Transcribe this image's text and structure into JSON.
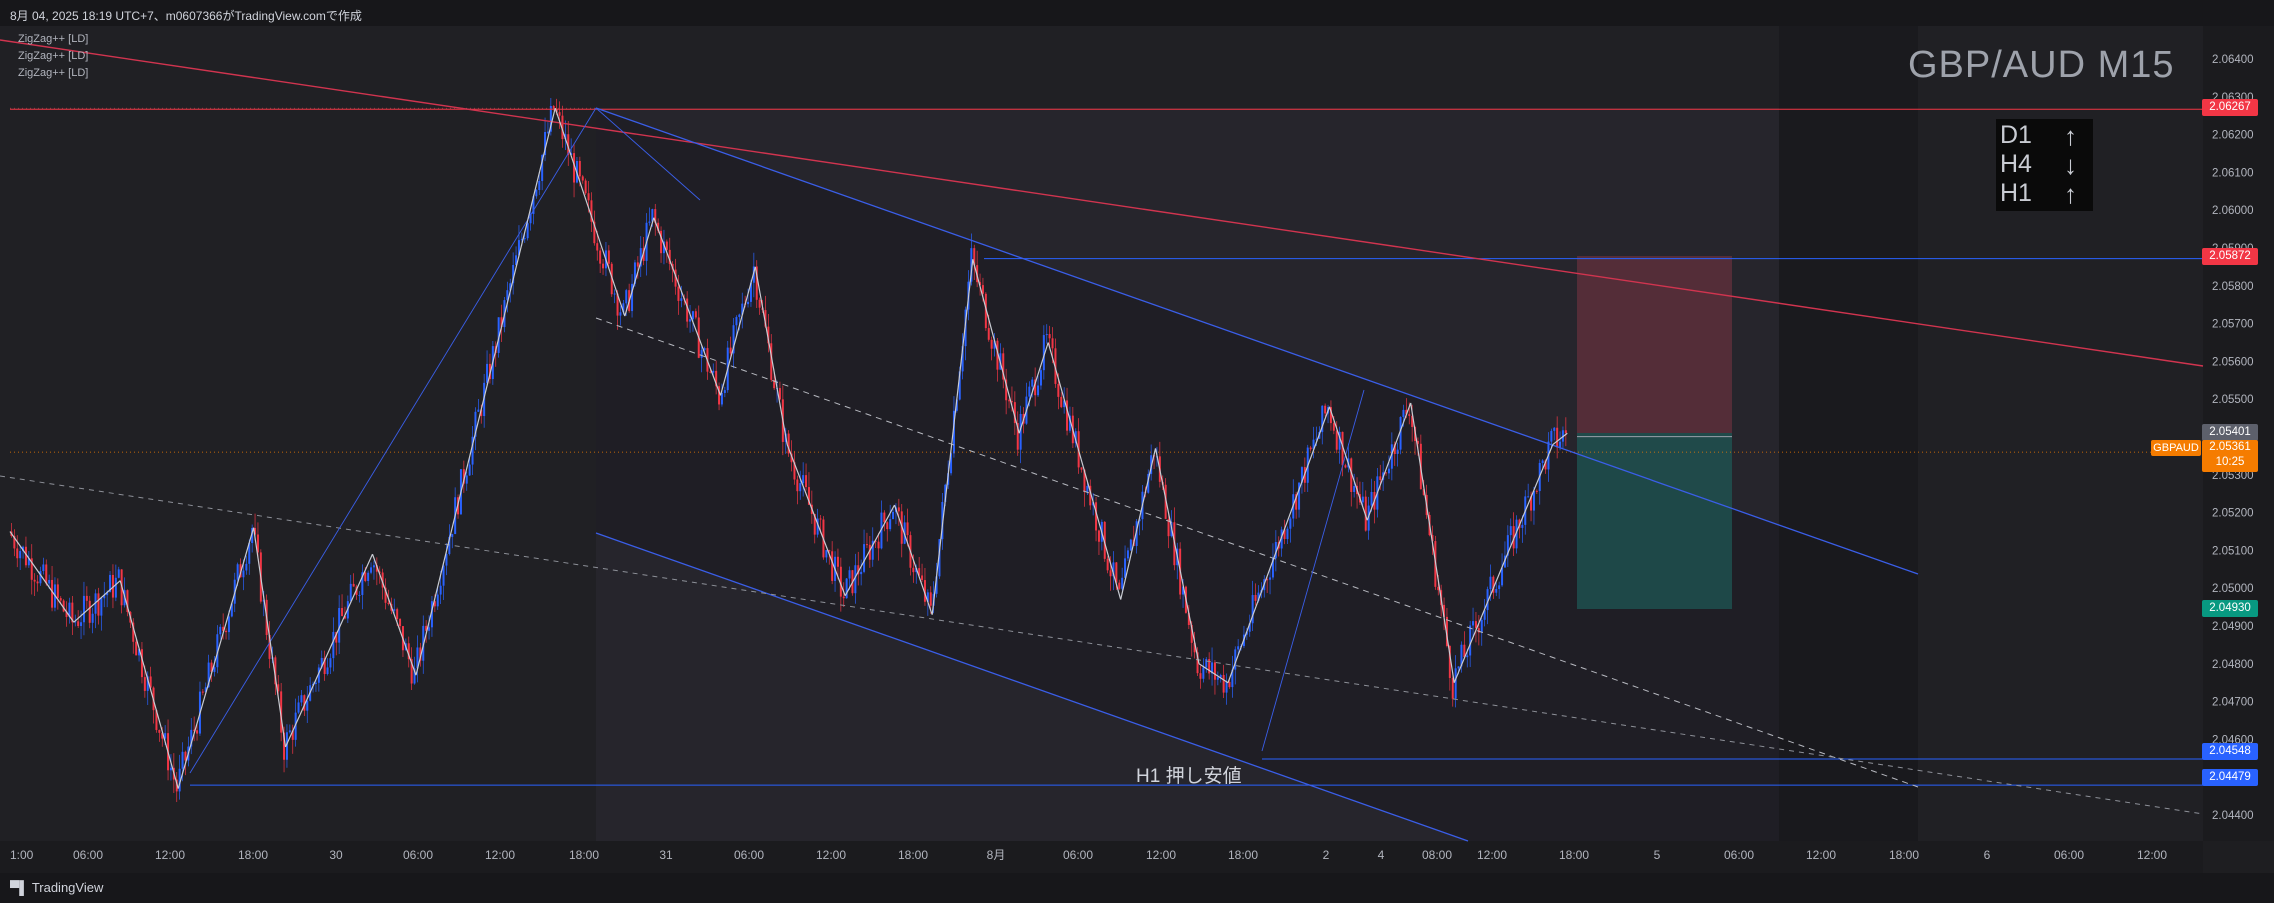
{
  "header": {
    "caption": "8月 04, 2025 18:19 UTC+7、m0607366がTradingView.comで作成"
  },
  "legend": {
    "indicators": [
      "ZigZag++ [LD]",
      "ZigZag++ [LD]",
      "ZigZag++ [LD]"
    ]
  },
  "overlay": {
    "pair_title": "GBP/AUD M15",
    "timeframes": [
      {
        "label": "D1",
        "arrow": "↑",
        "direction": "up"
      },
      {
        "label": "H4",
        "arrow": "↓",
        "direction": "down"
      },
      {
        "label": "H1",
        "arrow": "↑",
        "direction": "up"
      }
    ],
    "support_label": "H1 押し安値"
  },
  "price_tags": [
    {
      "price": "2.06267",
      "color": "#f23645"
    },
    {
      "price": "2.05872",
      "color": "#f23645"
    },
    {
      "price": "2.05401",
      "color": "#5d606b"
    },
    {
      "price": "2.04930",
      "color": "#089981"
    },
    {
      "price": "2.04548",
      "color": "#2962ff"
    },
    {
      "price": "2.04479",
      "color": "#2962ff"
    }
  ],
  "current": {
    "symbol": "GBPAUD",
    "price": "2.05361",
    "countdown": "10:25",
    "color": "#f57c00"
  },
  "footer": {
    "brand": "TradingView"
  },
  "chart_data": {
    "type": "candlestick",
    "ylim": [
      2.0435,
      2.0648
    ],
    "y_ticks": [
      2.064,
      2.063,
      2.062,
      2.061,
      2.06,
      2.059,
      2.058,
      2.057,
      2.056,
      2.055,
      2.054,
      2.053,
      2.052,
      2.051,
      2.05,
      2.049,
      2.048,
      2.047,
      2.046,
      2.045,
      2.044
    ],
    "x_ticks": [
      "1:00",
      "06:00",
      "12:00",
      "18:00",
      "30",
      "06:00",
      "12:00",
      "18:00",
      "31",
      "06:00",
      "12:00",
      "18:00",
      "8月",
      "06:00",
      "12:00",
      "18:00",
      "2",
      "4",
      "08:00",
      "12:00",
      "18:00",
      "5",
      "06:00",
      "12:00",
      "18:00",
      "6",
      "06:00",
      "12:00"
    ],
    "colors": {
      "up": "#2962ff",
      "down": "#f23645",
      "zigzag": "#c9ccd3"
    },
    "zigzag": [
      {
        "x": 0,
        "y": 2.0515
      },
      {
        "x": 22,
        "y": 2.0491
      },
      {
        "x": 38,
        "y": 2.0502
      },
      {
        "x": 58,
        "y": 2.0447
      },
      {
        "x": 84,
        "y": 2.0516
      },
      {
        "x": 95,
        "y": 2.0458
      },
      {
        "x": 125,
        "y": 2.0509
      },
      {
        "x": 140,
        "y": 2.0477
      },
      {
        "x": 188,
        "y": 2.0627
      },
      {
        "x": 212,
        "y": 2.0572
      },
      {
        "x": 222,
        "y": 2.0598
      },
      {
        "x": 245,
        "y": 2.0551
      },
      {
        "x": 257,
        "y": 2.0585
      },
      {
        "x": 268,
        "y": 2.0538
      },
      {
        "x": 288,
        "y": 2.0498
      },
      {
        "x": 305,
        "y": 2.0522
      },
      {
        "x": 318,
        "y": 2.0493
      },
      {
        "x": 332,
        "y": 2.0587
      },
      {
        "x": 348,
        "y": 2.0541
      },
      {
        "x": 358,
        "y": 2.0565
      },
      {
        "x": 383,
        "y": 2.0497
      },
      {
        "x": 395,
        "y": 2.0537
      },
      {
        "x": 410,
        "y": 2.048
      },
      {
        "x": 420,
        "y": 2.0475
      },
      {
        "x": 455,
        "y": 2.0548
      },
      {
        "x": 468,
        "y": 2.0518
      },
      {
        "x": 483,
        "y": 2.0549
      },
      {
        "x": 498,
        "y": 2.0475
      },
      {
        "x": 532,
        "y": 2.0538
      },
      {
        "x": 537,
        "y": 2.0541
      }
    ]
  }
}
